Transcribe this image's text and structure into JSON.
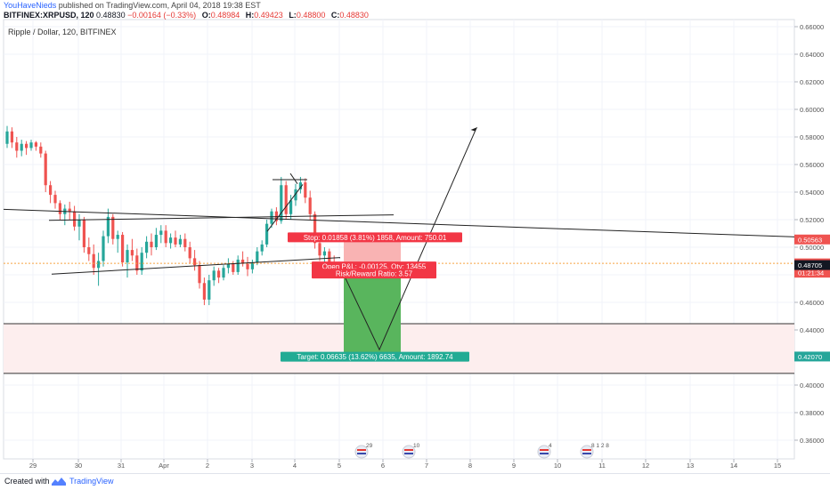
{
  "header": {
    "author": "YouHaveNieds",
    "published": "published on TradingView.com, April 04, 2018 19:38 EST",
    "ticker": "BITFINEX:XRPUSD, 120",
    "last": "0.48830",
    "change": "−0.00164 (−0.33%)",
    "o_label": "O:",
    "o": "0.48984",
    "h_label": "H:",
    "h": "0.49423",
    "l_label": "L:",
    "l": "0.48800",
    "c_label": "C:",
    "c": "0.48830"
  },
  "symbol_title": "Ripple / Dollar, 120, BITFINEX",
  "footer": {
    "created": "Created with",
    "brand": "TradingView"
  },
  "colors": {
    "up": "#26a69a",
    "down": "#ef5350",
    "stop_box": "#f9b3b3",
    "target_box": "#59b55d",
    "stop_label": "#f23645",
    "target_label": "#22ab94",
    "zone": "#fdeeee",
    "price_line": "#f7a441"
  },
  "chart_data": {
    "type": "candlestick",
    "title": "Ripple / Dollar, 120, BITFINEX",
    "yaxis_ticks": [
      "0.66000",
      "0.64000",
      "0.62000",
      "0.60000",
      "0.58000",
      "0.56000",
      "0.54000",
      "0.52000",
      "0.50000",
      "0.48000",
      "0.46000",
      "0.44000",
      "0.42000",
      "0.40000",
      "0.38000",
      "0.36000"
    ],
    "ylim": [
      0.344,
      0.666
    ],
    "xaxis_ticks": [
      "29",
      "30",
      "31",
      "Apr",
      "2",
      "3",
      "4",
      "5",
      "6",
      "7",
      "8",
      "9",
      "10",
      "11",
      "12",
      "13",
      "14",
      "15"
    ],
    "price_labels": [
      {
        "text": "0.50563",
        "value": 0.50563,
        "color": "#ef5350"
      },
      {
        "text": "0.48830",
        "value": 0.4883,
        "color": "#ef5350"
      },
      {
        "text": "01:21:34",
        "value": 0.4833,
        "color": "#ef5350"
      },
      {
        "text": "0.48705",
        "value": 0.48705,
        "color": "#131722"
      },
      {
        "text": "0.42070",
        "value": 0.4207,
        "color": "#26a69a"
      }
    ],
    "candles": [
      [
        0.575,
        0.588,
        0.572,
        0.584
      ],
      [
        0.584,
        0.587,
        0.572,
        0.576
      ],
      [
        0.576,
        0.58,
        0.565,
        0.57
      ],
      [
        0.57,
        0.578,
        0.566,
        0.575
      ],
      [
        0.575,
        0.577,
        0.567,
        0.572
      ],
      [
        0.572,
        0.578,
        0.57,
        0.576
      ],
      [
        0.576,
        0.577,
        0.57,
        0.573
      ],
      [
        0.573,
        0.576,
        0.565,
        0.568
      ],
      [
        0.568,
        0.57,
        0.54,
        0.545
      ],
      [
        0.545,
        0.548,
        0.532,
        0.538
      ],
      [
        0.538,
        0.541,
        0.528,
        0.532
      ],
      [
        0.532,
        0.534,
        0.52,
        0.524
      ],
      [
        0.524,
        0.531,
        0.516,
        0.528
      ],
      [
        0.528,
        0.533,
        0.52,
        0.526
      ],
      [
        0.526,
        0.53,
        0.512,
        0.515
      ],
      [
        0.515,
        0.524,
        0.505,
        0.52
      ],
      [
        0.52,
        0.522,
        0.496,
        0.5
      ],
      [
        0.5,
        0.507,
        0.49,
        0.495
      ],
      [
        0.495,
        0.502,
        0.48,
        0.485
      ],
      [
        0.485,
        0.496,
        0.472,
        0.49
      ],
      [
        0.49,
        0.512,
        0.486,
        0.508
      ],
      [
        0.508,
        0.528,
        0.503,
        0.522
      ],
      [
        0.522,
        0.524,
        0.502,
        0.506
      ],
      [
        0.506,
        0.512,
        0.496,
        0.509
      ],
      [
        0.509,
        0.511,
        0.486,
        0.489
      ],
      [
        0.489,
        0.502,
        0.478,
        0.498
      ],
      [
        0.498,
        0.506,
        0.49,
        0.494
      ],
      [
        0.494,
        0.499,
        0.48,
        0.483
      ],
      [
        0.483,
        0.5,
        0.48,
        0.496
      ],
      [
        0.496,
        0.508,
        0.492,
        0.504
      ],
      [
        0.504,
        0.51,
        0.494,
        0.5
      ],
      [
        0.5,
        0.514,
        0.498,
        0.509
      ],
      [
        0.509,
        0.516,
        0.503,
        0.512
      ],
      [
        0.512,
        0.516,
        0.5,
        0.503
      ],
      [
        0.503,
        0.51,
        0.499,
        0.507
      ],
      [
        0.507,
        0.512,
        0.5,
        0.502
      ],
      [
        0.502,
        0.509,
        0.5,
        0.506
      ],
      [
        0.506,
        0.51,
        0.497,
        0.5
      ],
      [
        0.5,
        0.504,
        0.488,
        0.492
      ],
      [
        0.492,
        0.498,
        0.483,
        0.487
      ],
      [
        0.487,
        0.49,
        0.47,
        0.474
      ],
      [
        0.474,
        0.478,
        0.458,
        0.462
      ],
      [
        0.462,
        0.48,
        0.458,
        0.476
      ],
      [
        0.476,
        0.486,
        0.472,
        0.483
      ],
      [
        0.483,
        0.485,
        0.474,
        0.478
      ],
      [
        0.478,
        0.487,
        0.476,
        0.485
      ],
      [
        0.485,
        0.492,
        0.481,
        0.488
      ],
      [
        0.488,
        0.49,
        0.48,
        0.482
      ],
      [
        0.482,
        0.494,
        0.48,
        0.491
      ],
      [
        0.491,
        0.497,
        0.486,
        0.488
      ],
      [
        0.488,
        0.493,
        0.479,
        0.484
      ],
      [
        0.484,
        0.491,
        0.481,
        0.489
      ],
      [
        0.489,
        0.5,
        0.487,
        0.497
      ],
      [
        0.497,
        0.505,
        0.494,
        0.502
      ],
      [
        0.502,
        0.52,
        0.5,
        0.517
      ],
      [
        0.517,
        0.528,
        0.514,
        0.526
      ],
      [
        0.526,
        0.529,
        0.516,
        0.519
      ],
      [
        0.519,
        0.551,
        0.517,
        0.545
      ],
      [
        0.545,
        0.548,
        0.52,
        0.524
      ],
      [
        0.524,
        0.538,
        0.52,
        0.534
      ],
      [
        0.534,
        0.546,
        0.53,
        0.542
      ],
      [
        0.542,
        0.551,
        0.539,
        0.547
      ],
      [
        0.547,
        0.55,
        0.532,
        0.536
      ],
      [
        0.536,
        0.541,
        0.52,
        0.524
      ],
      [
        0.524,
        0.526,
        0.499,
        0.503
      ],
      [
        0.503,
        0.506,
        0.49,
        0.494
      ],
      [
        0.494,
        0.5,
        0.489,
        0.497
      ],
      [
        0.497,
        0.499,
        0.487,
        0.489
      ],
      [
        0.489,
        0.494,
        0.487,
        0.4883
      ]
    ],
    "annotations": {
      "stop": "Stop: 0.01858 (3.81%) 1858, Amount: 750.01",
      "open": "Open P&L: -0.00125, Qty: 13455",
      "ratio": "Risk/Reward Ratio: 3.57",
      "target": "Target: 0.06635 (13.62%) 6635, Amount: 1892.74"
    },
    "event_badges": [
      "29",
      "10",
      "4",
      "8 1 2 8"
    ]
  }
}
